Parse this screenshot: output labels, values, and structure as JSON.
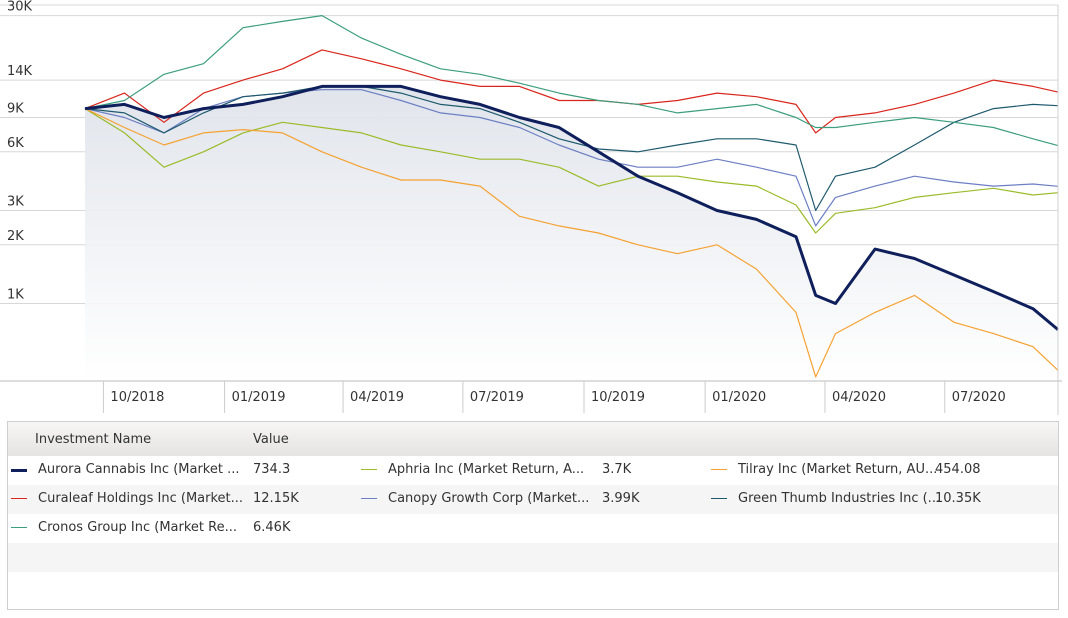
{
  "chart_data": {
    "type": "line",
    "y_scale": "log",
    "ylim": [
      400,
      34000
    ],
    "y_ticks": [
      {
        "value": 30000,
        "label": "30K"
      },
      {
        "value": 14000,
        "label": "14K"
      },
      {
        "value": 9000,
        "label": "9K"
      },
      {
        "value": 6000,
        "label": "6K"
      },
      {
        "value": 3000,
        "label": "3K"
      },
      {
        "value": 2000,
        "label": "2K"
      },
      {
        "value": 1000,
        "label": "1K"
      }
    ],
    "x_ticks": [
      {
        "date": "2018-10",
        "label": "10/2018"
      },
      {
        "date": "2019-01",
        "label": "01/2019"
      },
      {
        "date": "2019-04",
        "label": "04/2019"
      },
      {
        "date": "2019-07",
        "label": "07/2019"
      },
      {
        "date": "2019-10",
        "label": "10/2019"
      },
      {
        "date": "2020-01",
        "label": "01/2020"
      },
      {
        "date": "2020-04",
        "label": "04/2020"
      },
      {
        "date": "2020-07",
        "label": "07/2020"
      }
    ],
    "xlim": [
      "2018-09-17",
      "2020-09-25"
    ],
    "grid": true,
    "x_dates": [
      "2018-09-17",
      "2018-10-17",
      "2018-11-16",
      "2018-12-16",
      "2019-01-15",
      "2019-02-14",
      "2019-03-16",
      "2019-04-15",
      "2019-05-15",
      "2019-06-14",
      "2019-07-14",
      "2019-08-13",
      "2019-09-12",
      "2019-10-12",
      "2019-11-11",
      "2019-12-11",
      "2020-01-10",
      "2020-02-09",
      "2020-03-10",
      "2020-03-25",
      "2020-04-09",
      "2020-05-09",
      "2020-06-08",
      "2020-07-08",
      "2020-08-07",
      "2020-09-06",
      "2020-09-25"
    ],
    "series": [
      {
        "name": "Aurora Cannabis Inc (Market ...",
        "value_label": "734.3",
        "color": "#0f1f5c",
        "bold": true,
        "values": [
          10000,
          10500,
          9000,
          10000,
          10500,
          11500,
          13000,
          13000,
          13000,
          11500,
          10500,
          9000,
          8000,
          6000,
          4500,
          3700,
          3000,
          2700,
          2200,
          1100,
          1000,
          1900,
          1700,
          1400,
          1150,
          940,
          734
        ]
      },
      {
        "name": "Aphria Inc (Market Return, A...",
        "value_label": "3.7K",
        "color": "#9bbb2a",
        "bold": false,
        "values": [
          10000,
          7500,
          5000,
          6000,
          7500,
          8500,
          8000,
          7500,
          6500,
          6000,
          5500,
          5500,
          5000,
          4000,
          4500,
          4500,
          4200,
          4000,
          3200,
          2300,
          2900,
          3100,
          3500,
          3700,
          3900,
          3600,
          3700
        ]
      },
      {
        "name": "Tilray Inc (Market Return, AU...",
        "value_label": "454.08",
        "color": "#f5a233",
        "bold": false,
        "values": [
          10000,
          8000,
          6500,
          7500,
          7800,
          7500,
          6000,
          5000,
          4300,
          4300,
          4000,
          2800,
          2500,
          2300,
          2000,
          1800,
          2000,
          1500,
          900,
          420,
          700,
          900,
          1100,
          800,
          700,
          600,
          454
        ]
      },
      {
        "name": "Curaleaf Holdings Inc (Market...",
        "value_label": "12.15K",
        "color": "#d9261c",
        "bold": false,
        "values": [
          10000,
          12000,
          8500,
          12000,
          14000,
          16000,
          20000,
          18000,
          16000,
          14000,
          13000,
          13000,
          11000,
          11000,
          10500,
          11000,
          12000,
          11500,
          10500,
          7500,
          9000,
          9500,
          10500,
          12000,
          14000,
          13000,
          12150
        ]
      },
      {
        "name": "Canopy Growth Corp (Market...",
        "value_label": "3.99K",
        "color": "#6c7fc4",
        "bold": false,
        "values": [
          10000,
          9000,
          7500,
          10000,
          11500,
          12000,
          12500,
          12500,
          11000,
          9500,
          9000,
          8000,
          6500,
          5500,
          5000,
          5000,
          5500,
          5000,
          4500,
          2500,
          3500,
          4000,
          4500,
          4200,
          4000,
          4100,
          3990
        ]
      },
      {
        "name": "Green Thumb Industries Inc (...",
        "value_label": "10.35K",
        "color": "#1e5a6e",
        "bold": false,
        "values": [
          10000,
          9500,
          7500,
          9500,
          11500,
          12000,
          13000,
          13000,
          12000,
          10500,
          10000,
          8500,
          7000,
          6200,
          6000,
          6500,
          7000,
          7000,
          6500,
          3000,
          4500,
          5000,
          6500,
          8500,
          10000,
          10500,
          10350
        ]
      },
      {
        "name": "Cronos Group Inc (Market Re...",
        "value_label": "6.46K",
        "color": "#3c9e7e",
        "bold": false,
        "values": [
          10000,
          11000,
          15000,
          17000,
          26000,
          28000,
          30000,
          23000,
          19000,
          16000,
          15000,
          13500,
          12000,
          11000,
          10500,
          9500,
          10000,
          10500,
          9000,
          8000,
          8000,
          8500,
          9000,
          8500,
          8000,
          7000,
          6460
        ]
      }
    ],
    "legend_position": "bottom-table"
  },
  "legend": {
    "header_name": "Investment Name",
    "header_value": "Value"
  }
}
